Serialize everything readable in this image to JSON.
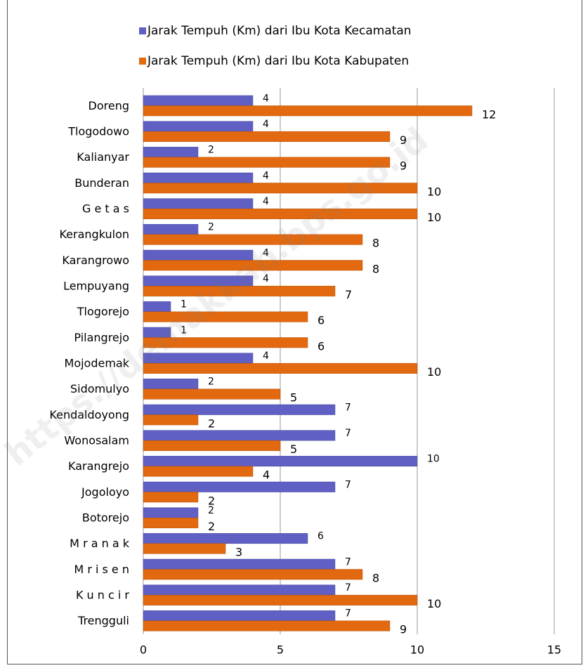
{
  "chart_data": {
    "type": "hbar",
    "watermark": "https://demakkab.bps.go.id",
    "categories": [
      "Doreng",
      "Tlogodowo",
      "Kalianyar",
      "Bunderan",
      "G e t a s",
      "Kerangkulon",
      "Karangrowo",
      "Lempuyang",
      "Tlogorejo",
      "Pilangrejo",
      "Mojodemak",
      "Sidomulyo",
      "Kendaldoyong",
      "Wonosalam",
      "Karangrejo",
      "Jogoloyo",
      "Botorejo",
      "M r a n a k",
      "M r i s e n",
      "K u n c i r",
      "Trengguli"
    ],
    "series": [
      {
        "name": "Jarak Tempuh (Km) dari Ibu Kota Kecamatan",
        "color": "#5f5fc4",
        "values": [
          4,
          4,
          2,
          4,
          4,
          2,
          4,
          4,
          1,
          1,
          4,
          2,
          7,
          7,
          10,
          7,
          2,
          6,
          7,
          7,
          7
        ]
      },
      {
        "name": "Jarak Tempuh (Km) dari Ibu Kota Kabupaten",
        "color": "#e2690f",
        "values": [
          12,
          9,
          9,
          10,
          10,
          8,
          8,
          7,
          6,
          6,
          10,
          5,
          2,
          5,
          4,
          2,
          2,
          3,
          8,
          10,
          9
        ]
      }
    ],
    "xlim": [
      0,
      15
    ],
    "xticks": [
      0,
      5,
      10,
      15
    ],
    "grid": true
  }
}
